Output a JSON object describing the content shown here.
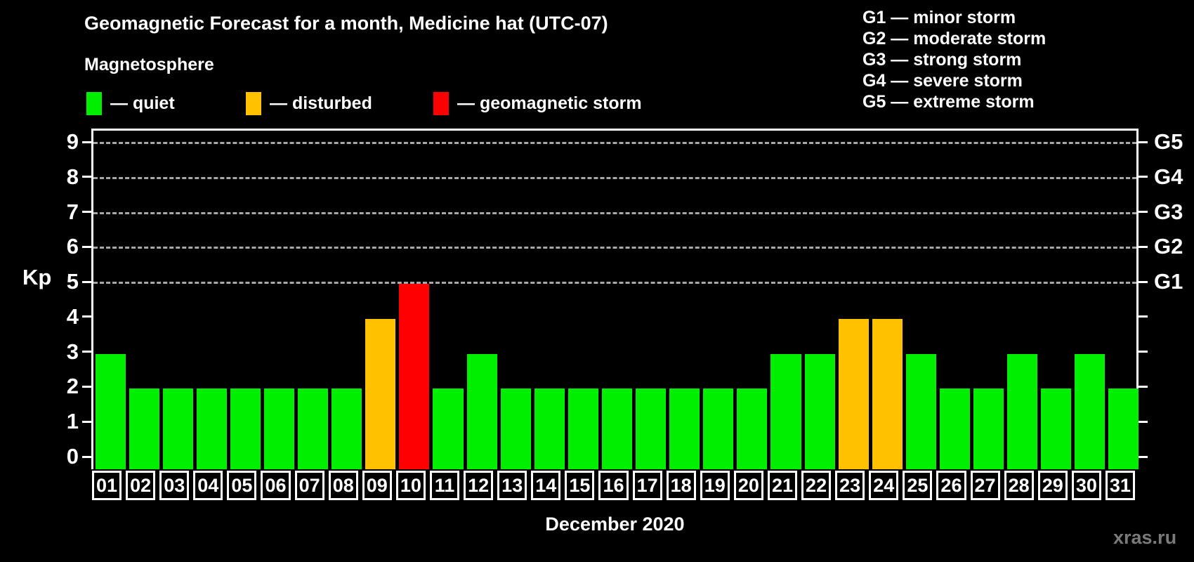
{
  "title": "Geomagnetic Forecast for a month, Medicine hat (UTC-07)",
  "subtitle": "Magnetosphere",
  "legend": {
    "items": [
      {
        "status": "quiet",
        "label": "— quiet",
        "color": "#00ee00"
      },
      {
        "status": "disturbed",
        "label": "— disturbed",
        "color": "#ffc100"
      },
      {
        "status": "storm",
        "label": "— geomagnetic storm",
        "color": "#ff0000"
      }
    ]
  },
  "gscale_legend": [
    "G1 — minor storm",
    "G2 — moderate storm",
    "G3 — strong storm",
    "G4 — severe storm",
    "G5 — extreme storm"
  ],
  "watermark": "xras.ru",
  "chart_data": {
    "type": "bar",
    "title": "Geomagnetic Forecast for a month, Medicine hat (UTC-07)",
    "xlabel": "December 2020",
    "ylabel": "Kp",
    "ylim": [
      0,
      9
    ],
    "yticks": [
      0,
      1,
      2,
      3,
      4,
      5,
      6,
      7,
      8,
      9
    ],
    "gridlines_at": [
      5,
      6,
      7,
      8,
      9
    ],
    "grid": "dashed",
    "legend_position": "top",
    "right_axis_labels": [
      {
        "kp": 5,
        "label": "G1"
      },
      {
        "kp": 6,
        "label": "G2"
      },
      {
        "kp": 7,
        "label": "G3"
      },
      {
        "kp": 8,
        "label": "G4"
      },
      {
        "kp": 9,
        "label": "G5"
      }
    ],
    "categories": [
      "01",
      "02",
      "03",
      "04",
      "05",
      "06",
      "07",
      "08",
      "09",
      "10",
      "11",
      "12",
      "13",
      "14",
      "15",
      "16",
      "17",
      "18",
      "19",
      "20",
      "21",
      "22",
      "23",
      "24",
      "25",
      "26",
      "27",
      "28",
      "29",
      "30",
      "31"
    ],
    "values": [
      3,
      2,
      2,
      2,
      2,
      2,
      2,
      2,
      4,
      5,
      2,
      3,
      2,
      2,
      2,
      2,
      2,
      2,
      2,
      2,
      3,
      3,
      4,
      4,
      3,
      2,
      2,
      3,
      2,
      3,
      2
    ],
    "statuses": [
      "quiet",
      "quiet",
      "quiet",
      "quiet",
      "quiet",
      "quiet",
      "quiet",
      "quiet",
      "disturbed",
      "storm",
      "quiet",
      "quiet",
      "quiet",
      "quiet",
      "quiet",
      "quiet",
      "quiet",
      "quiet",
      "quiet",
      "quiet",
      "quiet",
      "quiet",
      "disturbed",
      "disturbed",
      "quiet",
      "quiet",
      "quiet",
      "quiet",
      "quiet",
      "quiet",
      "quiet"
    ]
  }
}
